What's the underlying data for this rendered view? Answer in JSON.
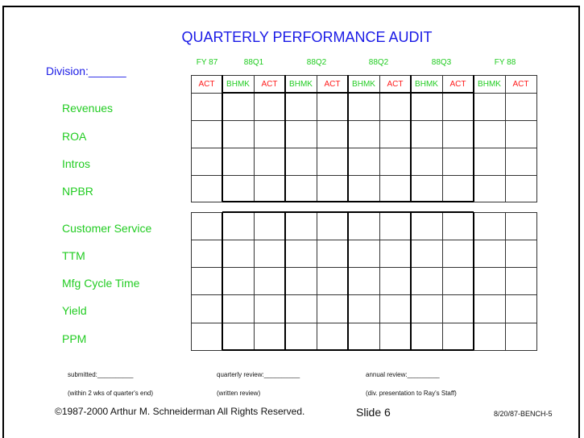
{
  "title": "QUARTERLY PERFORMANCE AUDIT",
  "division_label": "Division:______",
  "periods": [
    "FY 87",
    "88Q1",
    "88Q2",
    "88Q2",
    "88Q3",
    "FY 88"
  ],
  "columns": [
    "ACT",
    "BHMK",
    "ACT",
    "BHMK",
    "ACT",
    "BHMK",
    "ACT",
    "BHMK",
    "ACT",
    "BHMK",
    "ACT"
  ],
  "group1_rows": [
    "Revenues",
    "ROA",
    "Intros",
    "NPBR"
  ],
  "group2_rows": [
    "Customer Service",
    "TTM",
    "Mfg Cycle Time",
    "Yield",
    "PPM"
  ],
  "footer": {
    "submitted": "submitted:__________",
    "submitted_note": "(within 2 wks of quarter's end)",
    "quarterly": "quarterly review:__________",
    "quarterly_note": "(written review)",
    "annual": "annual review:_________",
    "annual_note": "(div. presentation to Ray's Staff)",
    "copyright": "©1987-2000 Arthur M. Schneiderman  All Rights Reserved.",
    "slide": "Slide 6",
    "code": "8/20/87-BENCH-5"
  },
  "colors": {
    "title": "#1a1ae6",
    "labels": "#22cc22",
    "act": "#ff1a1a"
  }
}
